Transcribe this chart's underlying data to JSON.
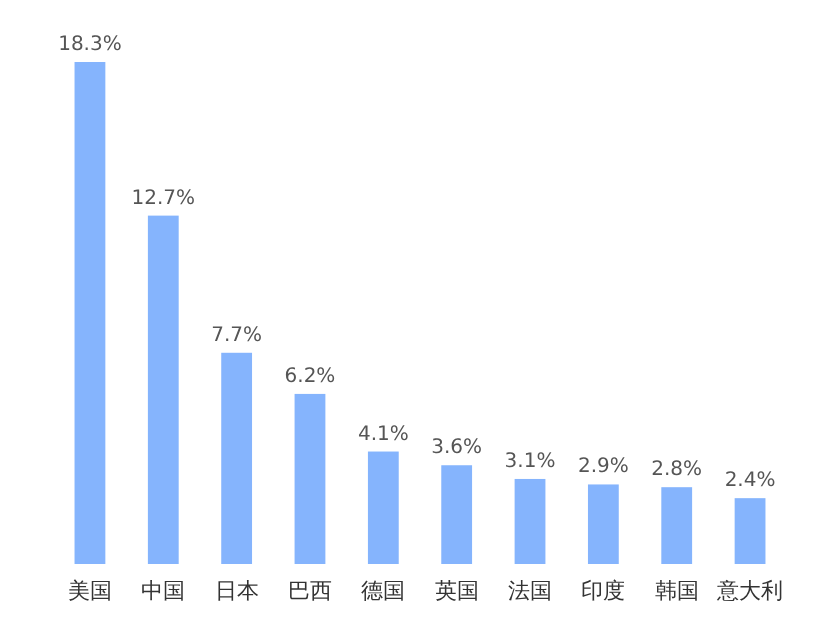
{
  "chart_data": {
    "type": "bar",
    "categories": [
      "美国",
      "中国",
      "日本",
      "巴西",
      "德国",
      "英国",
      "法国",
      "印度",
      "韩国",
      "意大利"
    ],
    "values": [
      18.3,
      12.7,
      7.7,
      6.2,
      4.1,
      3.6,
      3.1,
      2.9,
      2.8,
      2.4
    ],
    "value_labels": [
      "18.3%",
      "12.7%",
      "7.7%",
      "6.2%",
      "4.1%",
      "3.6%",
      "3.1%",
      "2.9%",
      "2.8%",
      "2.4%"
    ],
    "color": "#85b4fd"
  }
}
